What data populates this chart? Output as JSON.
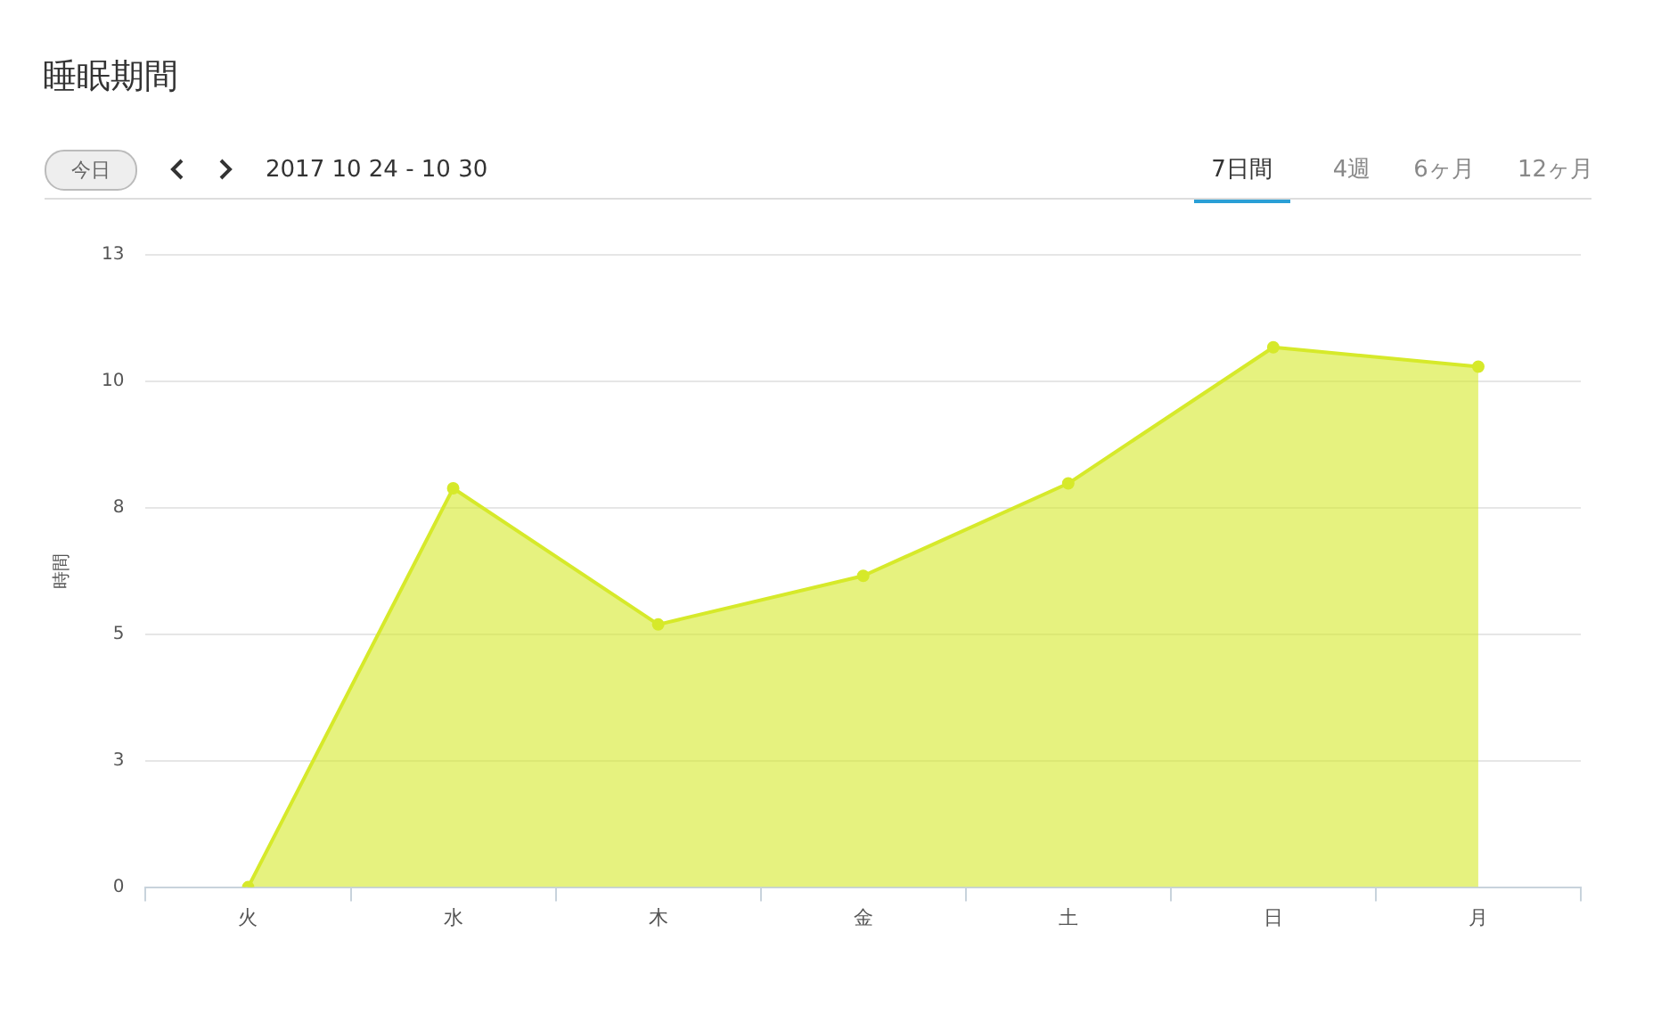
{
  "chart_data": {
    "type": "area",
    "title": "睡眠期間",
    "subtitle": "2017 10 24 - 10 30",
    "annotations": [
      "今日",
      "7日間",
      "4週",
      "6ヶ月",
      "12ヶ月"
    ],
    "ylabel": "時間",
    "categories": [
      "火",
      "水",
      "木",
      "金",
      "土",
      "日",
      "月"
    ],
    "series": [
      {
        "color": "#d6e92a",
        "values": [
          0,
          8.2,
          5.4,
          6.4,
          8.3,
          11.1,
          10.7
        ]
      }
    ],
    "ylim": [
      0,
      13
    ],
    "yticks": [
      {
        "value": 0,
        "label": "0"
      },
      {
        "value": 2.6,
        "label": "3"
      },
      {
        "value": 5.2,
        "label": "5"
      },
      {
        "value": 7.8,
        "label": "8"
      },
      {
        "value": 10.4,
        "label": "10"
      },
      13
    ],
    "grid": "y",
    "legend": false,
    "marker": "circle"
  }
}
